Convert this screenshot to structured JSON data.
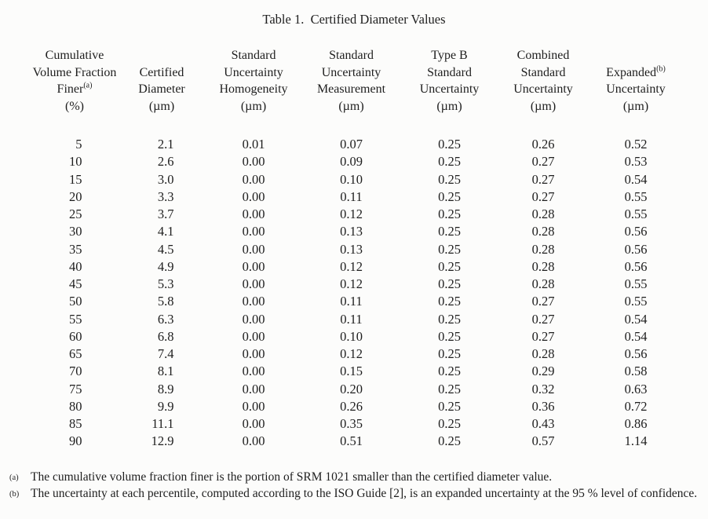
{
  "document": {
    "title": "Table 1.  Certified Diameter Values"
  },
  "table": {
    "header": {
      "col1": {
        "l1": "Cumulative",
        "l2": "Volume Fraction",
        "l3": "Finer",
        "l3_sup": "(a)",
        "l4": "(%)"
      },
      "col2": {
        "l1": "Certified",
        "l2": "Diameter",
        "l3": "(µm)"
      },
      "col3": {
        "l1": "Standard",
        "l2": "Uncertainty",
        "l3": "Homogeneity",
        "l4": "(µm)"
      },
      "col4": {
        "l1": "Standard",
        "l2": "Uncertainty",
        "l3": "Measurement",
        "l4": "(µm)"
      },
      "col5": {
        "l1": "Type B",
        "l2": "Standard",
        "l3": "Uncertainty",
        "l4": "(µm)"
      },
      "col6": {
        "l1": "Combined",
        "l2": "Standard",
        "l3": "Uncertainty",
        "l4": "(µm)"
      },
      "col7": {
        "l1": "Expanded",
        "l1_sup": "(b)",
        "l2": "Uncertainty",
        "l3": "(µm)"
      }
    },
    "rows": [
      [
        "5",
        "2.1",
        "0.01",
        "0.07",
        "0.25",
        "0.26",
        "0.52"
      ],
      [
        "10",
        "2.6",
        "0.00",
        "0.09",
        "0.25",
        "0.27",
        "0.53"
      ],
      [
        "15",
        "3.0",
        "0.00",
        "0.10",
        "0.25",
        "0.27",
        "0.54"
      ],
      [
        "20",
        "3.3",
        "0.00",
        "0.11",
        "0.25",
        "0.27",
        "0.55"
      ],
      [
        "25",
        "3.7",
        "0.00",
        "0.12",
        "0.25",
        "0.28",
        "0.55"
      ],
      [
        "30",
        "4.1",
        "0.00",
        "0.13",
        "0.25",
        "0.28",
        "0.56"
      ],
      [
        "35",
        "4.5",
        "0.00",
        "0.13",
        "0.25",
        "0.28",
        "0.56"
      ],
      [
        "40",
        "4.9",
        "0.00",
        "0.12",
        "0.25",
        "0.28",
        "0.56"
      ],
      [
        "45",
        "5.3",
        "0.00",
        "0.12",
        "0.25",
        "0.28",
        "0.55"
      ],
      [
        "50",
        "5.8",
        "0.00",
        "0.11",
        "0.25",
        "0.27",
        "0.55"
      ],
      [
        "55",
        "6.3",
        "0.00",
        "0.11",
        "0.25",
        "0.27",
        "0.54"
      ],
      [
        "60",
        "6.8",
        "0.00",
        "0.10",
        "0.25",
        "0.27",
        "0.54"
      ],
      [
        "65",
        "7.4",
        "0.00",
        "0.12",
        "0.25",
        "0.28",
        "0.56"
      ],
      [
        "70",
        "8.1",
        "0.00",
        "0.15",
        "0.25",
        "0.29",
        "0.58"
      ],
      [
        "75",
        "8.9",
        "0.00",
        "0.20",
        "0.25",
        "0.32",
        "0.63"
      ],
      [
        "80",
        "9.9",
        "0.00",
        "0.26",
        "0.25",
        "0.36",
        "0.72"
      ],
      [
        "85",
        "11.1",
        "0.00",
        "0.35",
        "0.25",
        "0.43",
        "0.86"
      ],
      [
        "90",
        "12.9",
        "0.00",
        "0.51",
        "0.25",
        "0.57",
        "1.14"
      ]
    ]
  },
  "footnotes": [
    {
      "marker": "(a)",
      "text": "The cumulative volume fraction finer is the portion of SRM 1021 smaller than the certified diameter value."
    },
    {
      "marker": "(b)",
      "text": "The uncertainty at each percentile, computed according to the ISO Guide [2], is an expanded uncertainty at the 95 % level of confidence."
    }
  ]
}
